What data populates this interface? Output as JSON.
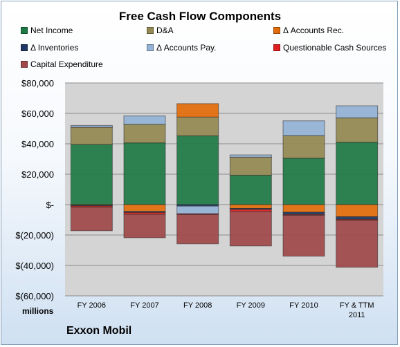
{
  "chart_data": {
    "type": "bar",
    "stacked": true,
    "title": "Free Cash Flow Components",
    "company": "Exxon Mobil",
    "units_label": "millions",
    "categories": [
      "FY 2006",
      "FY 2007",
      "FY 2008",
      "FY 2009",
      "FY 2010",
      "FY & TTM|2011"
    ],
    "ylim": [
      -60000,
      80000
    ],
    "yticks": [
      80000,
      60000,
      40000,
      20000,
      0,
      -20000,
      -40000,
      -60000
    ],
    "ytick_labels": [
      "$80,000",
      "$60,000",
      "$40,000",
      "$20,000",
      "$-",
      "$(20,000)",
      "$(40,000)",
      "$(60,000)"
    ],
    "grid": true,
    "legend_position": "top",
    "series": [
      {
        "name": "Net Income",
        "color": "#1e7a44",
        "values": [
          39500,
          40600,
          45200,
          19300,
          30500,
          41000
        ]
      },
      {
        "name": "D&A",
        "color": "#938953",
        "values": [
          11400,
          12200,
          12400,
          11900,
          14800,
          16000
        ]
      },
      {
        "name": "Δ Accounts Rec.",
        "color": "#e36c0a",
        "values": [
          -500,
          -4500,
          8800,
          -2500,
          -5000,
          -8000
        ]
      },
      {
        "name": "Δ Inventories",
        "color": "#1f3864",
        "values": [
          -400,
          -700,
          -1000,
          -700,
          -1500,
          -1700
        ]
      },
      {
        "name": "Δ Accounts Pay.",
        "color": "#95b3d7",
        "values": [
          1200,
          5500,
          -5000,
          1500,
          9800,
          8000
        ]
      },
      {
        "name": "Questionable Cash Sources",
        "color": "#e02020",
        "values": [
          -800,
          -1200,
          -500,
          -1500,
          -500,
          -500
        ]
      },
      {
        "name": "Capital Expenditure",
        "color": "#a0484a",
        "values": [
          -15500,
          -15400,
          -19300,
          -22500,
          -26900,
          -31000
        ]
      }
    ]
  }
}
